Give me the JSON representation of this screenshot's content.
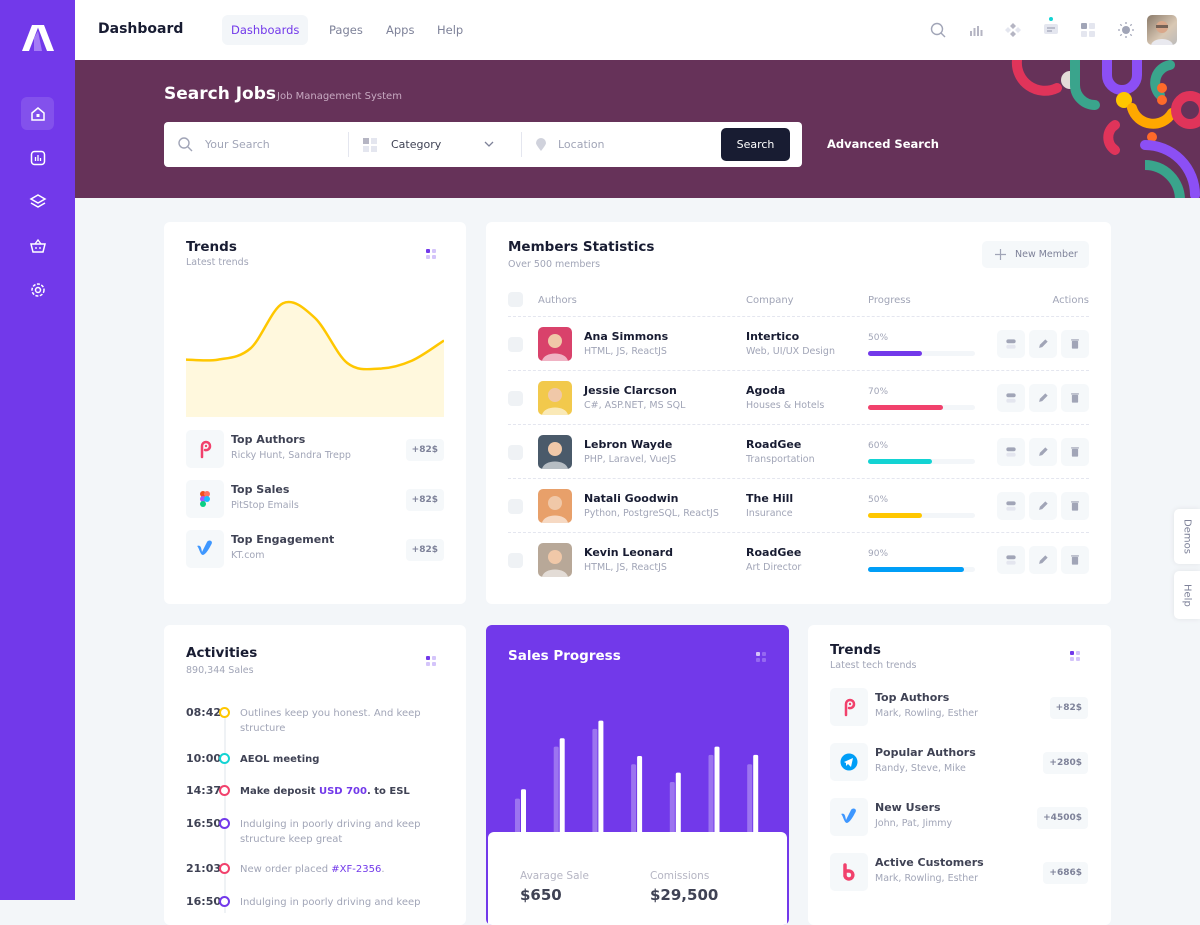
{
  "header": {
    "title": "Dashboard",
    "nav": [
      "Dashboards",
      "Pages",
      "Apps",
      "Help"
    ],
    "active_nav": 0,
    "icons": [
      "search-icon",
      "chart-icon",
      "elements-icon",
      "chat-icon",
      "apps-grid-icon",
      "sun-icon"
    ]
  },
  "sidebar": {
    "icons": [
      "home-icon",
      "bar-chart-icon",
      "layers-icon",
      "basket-icon",
      "settings-icon"
    ],
    "active": 0
  },
  "banner": {
    "title": "Search Jobs",
    "subtitle": "Job Management System",
    "search_placeholder": "Your Search",
    "category": "Category",
    "location_placeholder": "Location",
    "search_button": "Search",
    "advanced": "Advanced Search"
  },
  "trends": {
    "title": "Trends",
    "subtitle": "Latest trends",
    "chart_data": {
      "type": "area",
      "values": [
        51,
        51,
        61,
        101,
        88,
        48,
        43,
        50,
        68
      ],
      "color": "#ffc700",
      "fill": "#fff8dd"
    },
    "items": [
      {
        "icon": "pinterest-icon",
        "title": "Top Authors",
        "sub": "Ricky Hunt, Sandra Trepp",
        "badge": "+82$"
      },
      {
        "icon": "figma-icon",
        "title": "Top Sales",
        "sub": "PitStop Emails",
        "badge": "+82$"
      },
      {
        "icon": "vimeo-icon",
        "title": "Top Engagement",
        "sub": "KT.com",
        "badge": "+82$"
      }
    ]
  },
  "members": {
    "title": "Members Statistics",
    "subtitle": "Over 500 members",
    "new_button": "New Member",
    "columns": [
      "Authors",
      "Company",
      "Progress",
      "Actions"
    ],
    "rows": [
      {
        "name": "Ana Simmons",
        "skills": "HTML, JS, ReactJS",
        "company": "Intertico",
        "company_sub": "Web, UI/UX Design",
        "progress": 50,
        "color": "#7239ea",
        "avatar": "#d9426b"
      },
      {
        "name": "Jessie Clarcson",
        "skills": "C#, ASP.NET, MS SQL",
        "company": "Agoda",
        "company_sub": "Houses & Hotels",
        "progress": 70,
        "color": "#f1416c",
        "avatar": "#f2c94c"
      },
      {
        "name": "Lebron Wayde",
        "skills": "PHP, Laravel, VueJS",
        "company": "RoadGee",
        "company_sub": "Transportation",
        "progress": 60,
        "color": "#13d3d3",
        "avatar": "#4a5a6a"
      },
      {
        "name": "Natali Goodwin",
        "skills": "Python, PostgreSQL, ReactJS",
        "company": "The Hill",
        "company_sub": "Insurance",
        "progress": 50,
        "color": "#ffc700",
        "avatar": "#e8a06a"
      },
      {
        "name": "Kevin Leonard",
        "skills": "HTML, JS, ReactJS",
        "company": "RoadGee",
        "company_sub": "Art Director",
        "progress": 90,
        "color": "#009ef7",
        "avatar": "#b8a898"
      }
    ]
  },
  "activities": {
    "title": "Activities",
    "subtitle": "890,344 Sales",
    "items": [
      {
        "time": "08:42",
        "color": "#ffc700",
        "text": "Outlines keep you honest. And keep structure",
        "bold": false
      },
      {
        "time": "10:00",
        "color": "#13d3d3",
        "text": "AEOL meeting",
        "bold": true
      },
      {
        "time": "14:37",
        "color": "#f1416c",
        "text": "Make deposit ",
        "link": "USD 700",
        "after": ". to ESL",
        "bold": true
      },
      {
        "time": "16:50",
        "color": "#7239ea",
        "text": "Indulging in poorly driving and keep structure keep great",
        "bold": false
      },
      {
        "time": "21:03",
        "color": "#f1416c",
        "text": "New order placed ",
        "link": "#XF-2356",
        "after": ".",
        "bold": false
      },
      {
        "time": "16:50",
        "color": "#7239ea",
        "text": "Indulging in poorly driving and keep",
        "bold": false
      }
    ]
  },
  "sales": {
    "title": "Sales Progress",
    "avg_label": "Avarage Sale",
    "avg_value": "$650",
    "com_label": "Comissions",
    "com_value": "$29,500",
    "chart_data": {
      "type": "bar",
      "series": [
        {
          "values": [
            35,
            85,
            102,
            68,
            51,
            77,
            68
          ]
        },
        {
          "values": [
            44,
            93,
            110,
            76,
            60,
            85,
            77
          ]
        }
      ]
    }
  },
  "trends2": {
    "title": "Trends",
    "subtitle": "Latest tech trends",
    "items": [
      {
        "icon": "pinterest-icon",
        "title": "Top Authors",
        "sub": "Mark, Rowling, Esther",
        "badge": "+82$"
      },
      {
        "icon": "telegram-icon",
        "title": "Popular Authors",
        "sub": "Randy, Steve, Mike",
        "badge": "+280$"
      },
      {
        "icon": "vimeo-icon",
        "title": "New Users",
        "sub": "John, Pat, Jimmy",
        "badge": "+4500$"
      },
      {
        "icon": "bebo-icon",
        "title": "Active Customers",
        "sub": "Mark, Rowling, Esther",
        "badge": "+686$"
      }
    ]
  },
  "side_tabs": [
    "Demos",
    "Help"
  ]
}
